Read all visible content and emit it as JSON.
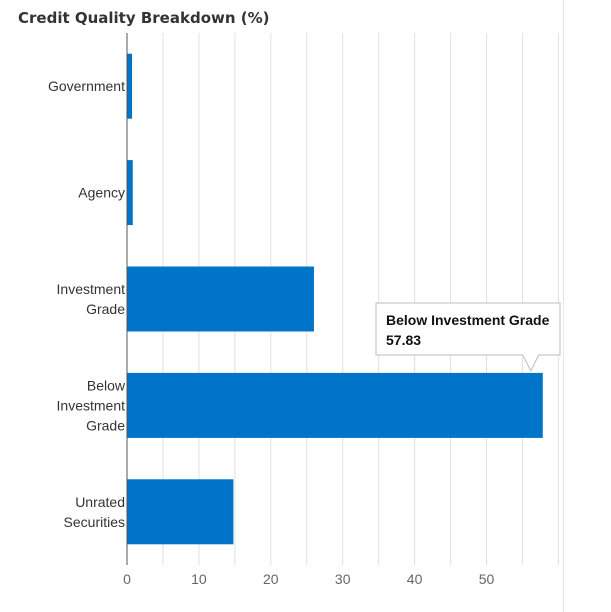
{
  "title": "Credit Quality Breakdown (%)",
  "colors": {
    "bar": "#0074c8",
    "tooltip_border": "#bdbdbd"
  },
  "chart_data": {
    "type": "bar",
    "orientation": "horizontal",
    "title": "Credit Quality Breakdown (%)",
    "categories": [
      [
        "Government"
      ],
      [
        "Agency"
      ],
      [
        "Investment",
        "Grade"
      ],
      [
        "Below",
        "Investment",
        "Grade"
      ],
      [
        "Unrated",
        "Securities"
      ]
    ],
    "values": [
      0.7,
      0.8,
      26.0,
      57.83,
      14.8
    ],
    "xlim": [
      0,
      60
    ],
    "ticks": [
      0,
      10,
      20,
      30,
      40,
      50
    ],
    "grid": true,
    "tooltip": {
      "category": "Below Investment Grade",
      "value": "57.83"
    }
  }
}
